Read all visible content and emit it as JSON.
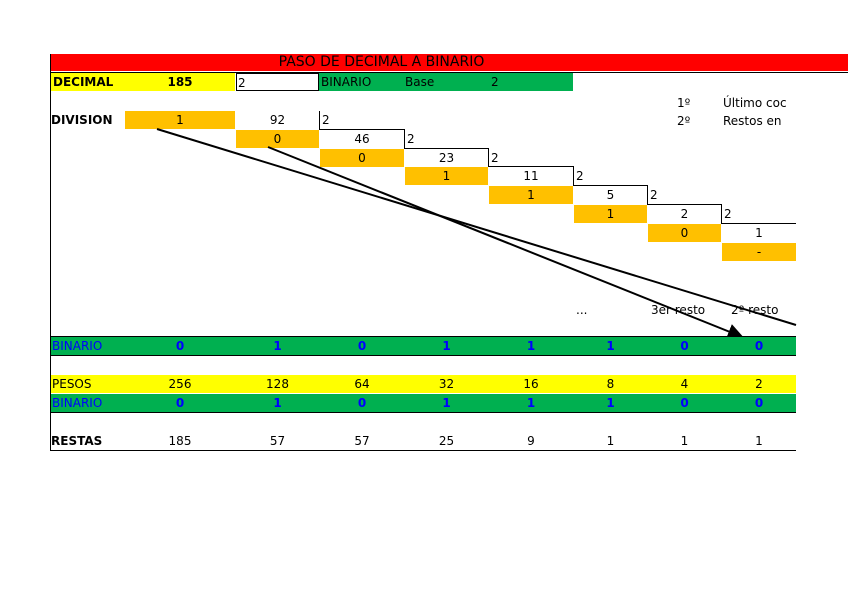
{
  "title": "PASO DE DECIMAL A BINARIO",
  "decimal_row": {
    "label": "DECIMAL",
    "value": "185",
    "divisor": "2",
    "binario_label": "BINARIO",
    "base_label": "Base",
    "base_value": "2"
  },
  "notes": [
    {
      "num": "1º",
      "text": "Último coc"
    },
    {
      "num": "2º",
      "text": "Restos en"
    }
  ],
  "division": {
    "label": "DIVISION",
    "remainders": [
      "1",
      "0",
      "0",
      "1",
      "1",
      "1",
      "0",
      "-"
    ],
    "quotients": [
      "92",
      "46",
      "23",
      "11",
      "5",
      "2",
      "1"
    ],
    "divisors": [
      "2",
      "2",
      "2",
      "2",
      "2",
      "2",
      "2"
    ]
  },
  "resto_labels": [
    "...",
    "3er resto",
    "2º resto"
  ],
  "binario_row": {
    "label": "BINARIO",
    "values": [
      "0",
      "1",
      "0",
      "1",
      "1",
      "1",
      "0",
      "0"
    ]
  },
  "pesos_row": {
    "label": "PESOS",
    "values": [
      "256",
      "128",
      "64",
      "32",
      "16",
      "8",
      "4",
      "2"
    ]
  },
  "binario_row2": {
    "label": "BINARIO",
    "values": [
      "0",
      "1",
      "0",
      "1",
      "1",
      "1",
      "0",
      "0"
    ]
  },
  "restas_row": {
    "label": "RESTAS",
    "values": [
      "185",
      "57",
      "57",
      "25",
      "9",
      "1",
      "1",
      "1"
    ]
  }
}
